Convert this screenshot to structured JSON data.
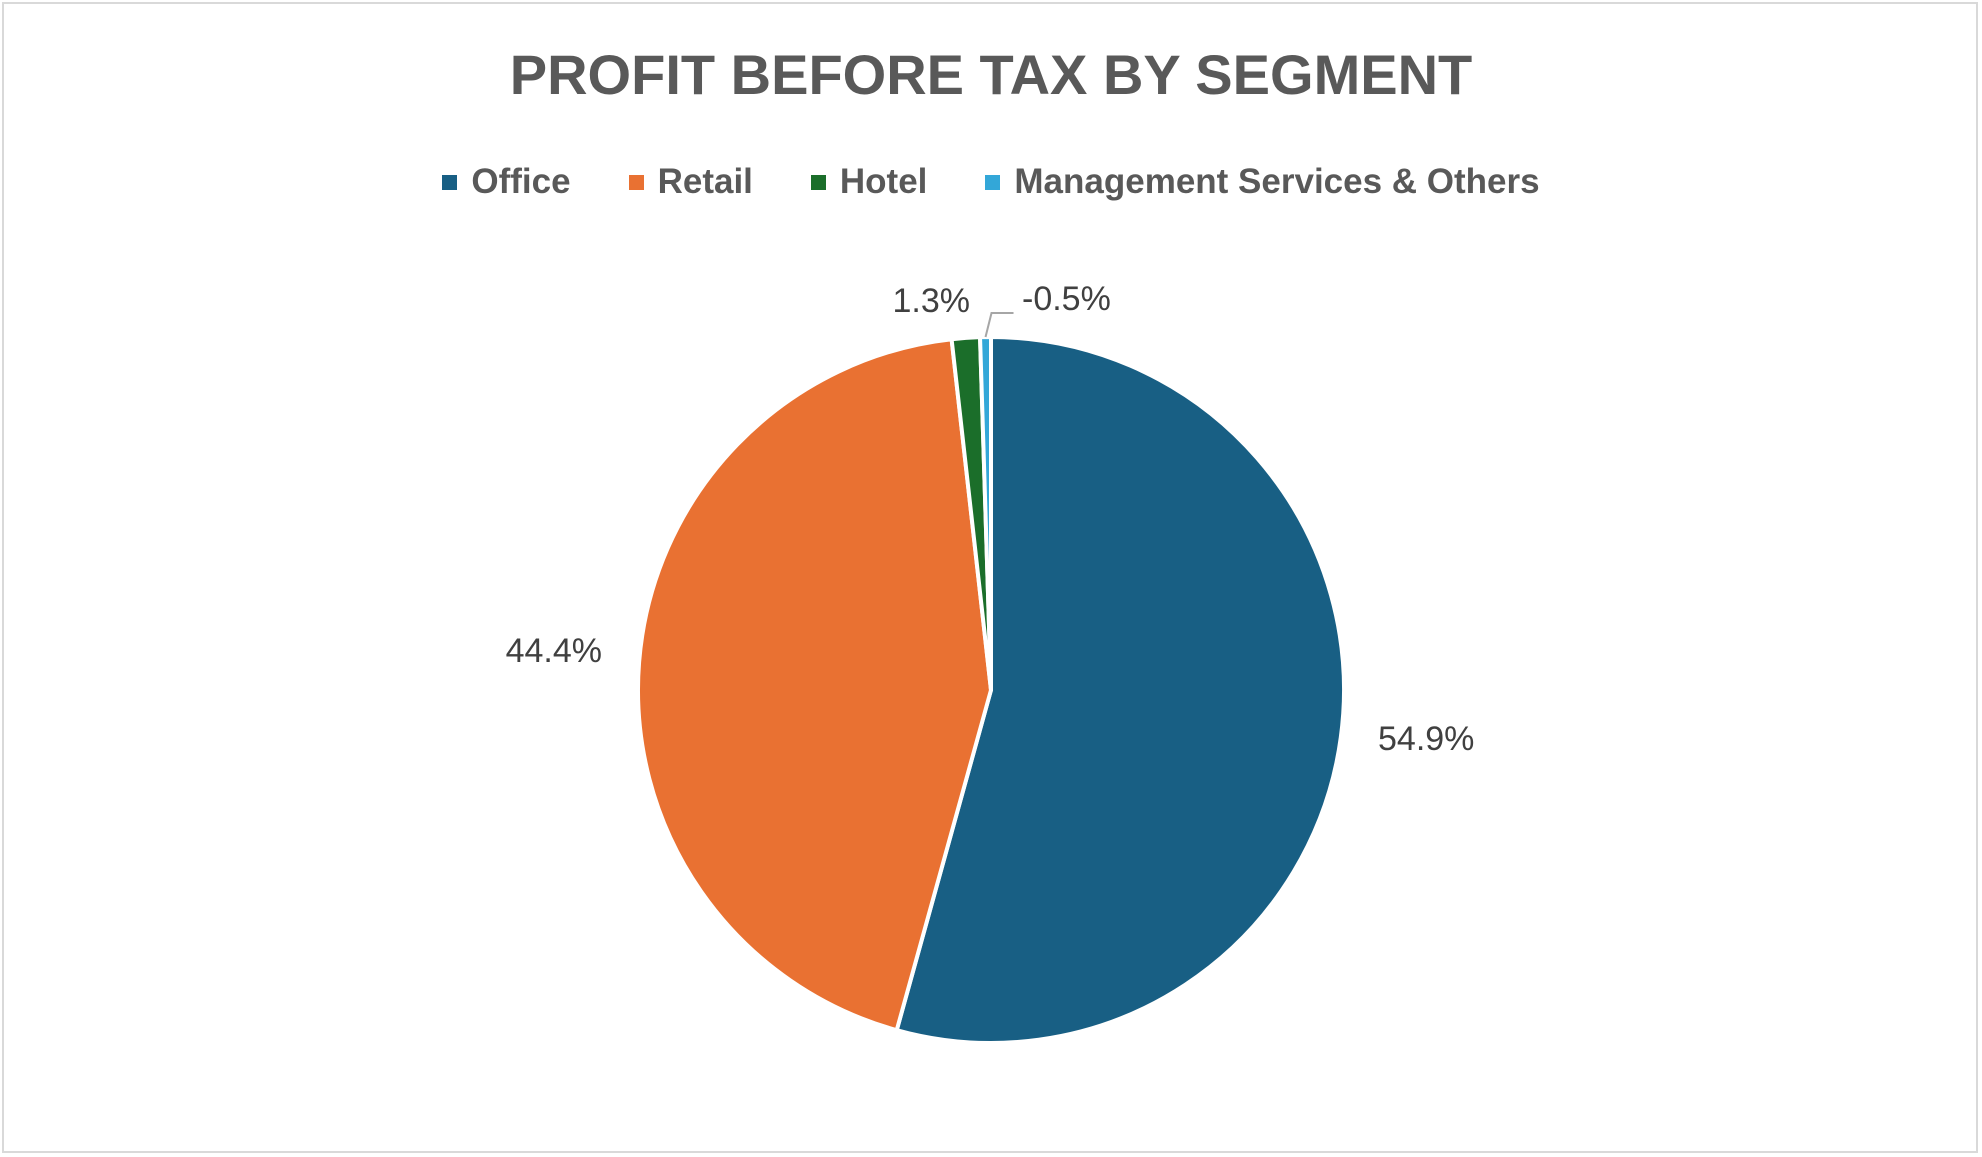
{
  "chart_data": {
    "type": "pie",
    "title": "PROFIT BEFORE TAX BY SEGMENT",
    "categories": [
      "Office",
      "Retail",
      "Hotel",
      "Management Services & Others"
    ],
    "values": [
      54.9,
      44.4,
      1.3,
      -0.5
    ],
    "data_labels": [
      "54.9%",
      "44.4%",
      "1.3%",
      "-0.5%"
    ],
    "colors": [
      "#185f84",
      "#e97132",
      "#1b6e2a",
      "#33a7d8"
    ],
    "unit": "%",
    "legend_position": "top",
    "start_angle": "12 o'clock",
    "direction": "clockwise"
  }
}
